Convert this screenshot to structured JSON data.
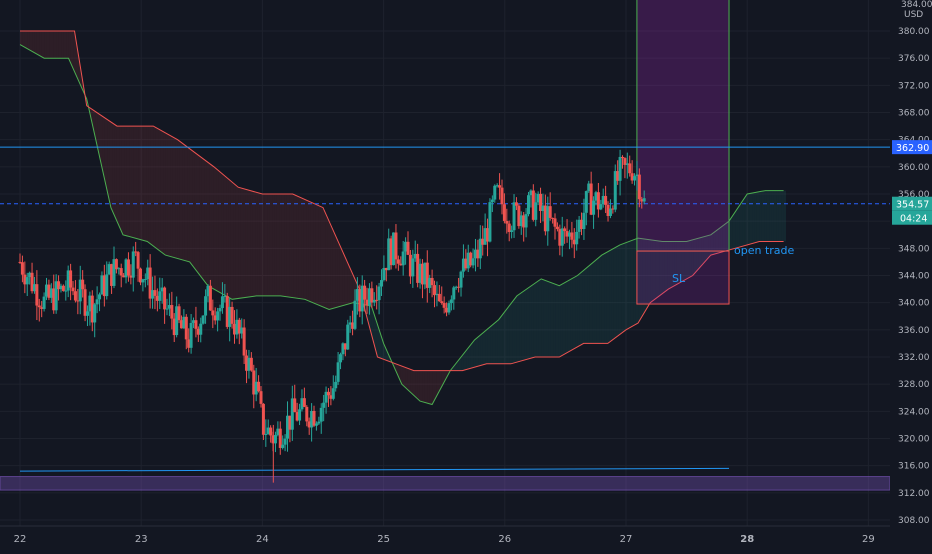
{
  "colors": {
    "background": "#131722",
    "grid": "#1e222d",
    "axis_text": "#b2b5be",
    "bull": "#26a69a",
    "bear": "#ef5350",
    "level_line": "#2962ff",
    "current_price_bg": "#26a69a",
    "level_price_bg": "#2962ff",
    "kumo_bull_fill": "#26a69a",
    "kumo_bear_fill": "#ef5350",
    "span_a": "#4caf50",
    "span_b": "#ef5350",
    "zone_purple": "#7e57c2",
    "annotation_text": "#2196f3"
  },
  "price_axis": {
    "currency": "USD",
    "top_label": "384.00",
    "ticks": [
      "380.00",
      "376.00",
      "372.00",
      "368.00",
      "364.00",
      "360.00",
      "356.00",
      "352.00",
      "348.00",
      "344.00",
      "340.00",
      "336.00",
      "332.00",
      "328.00",
      "324.00",
      "320.00",
      "316.00",
      "312.00",
      "308.00"
    ]
  },
  "time_axis": {
    "labels": [
      {
        "text": "22",
        "bold": false
      },
      {
        "text": "23",
        "bold": false
      },
      {
        "text": "24",
        "bold": false
      },
      {
        "text": "25",
        "bold": false
      },
      {
        "text": "26",
        "bold": false
      },
      {
        "text": "27",
        "bold": false
      },
      {
        "text": "28",
        "bold": true
      },
      {
        "text": "29",
        "bold": false
      }
    ]
  },
  "price_labels": {
    "level": "362.90",
    "current": "354.57",
    "countdown": "04:24"
  },
  "annotations": {
    "open_trade": "open trade",
    "stop_loss": "SL"
  },
  "chart_data": {
    "type": "candlestick",
    "x_axis": {
      "type": "date",
      "range": [
        "2021-01-22",
        "2021-01-29"
      ]
    },
    "ylim": [
      306,
      386
    ],
    "grid": true,
    "legend": "none",
    "horizontal_levels": [
      {
        "price": 362.9,
        "style": "solid"
      },
      {
        "price": 354.57,
        "style": "dashed"
      }
    ],
    "support_line": {
      "from": {
        "t": 0.0,
        "price": 315.2
      },
      "to": {
        "t": 5.85,
        "price": 315.6
      }
    },
    "purple_band": {
      "low": 312.4,
      "high": 314.4
    },
    "trade_zone": {
      "t_start": 5.09,
      "t_end": 5.85,
      "target_top": 386,
      "entry": 347.6,
      "stop": 339.8
    },
    "candles_seed": {
      "start": 346.0,
      "path": [
        [
          0.0,
          346.0
        ],
        [
          0.2,
          340.0
        ],
        [
          0.4,
          342.5
        ],
        [
          0.6,
          339.5
        ],
        [
          0.75,
          344.5
        ],
        [
          0.95,
          346.5
        ],
        [
          1.12,
          341.0
        ],
        [
          1.25,
          338.0
        ],
        [
          1.4,
          334.5
        ],
        [
          1.55,
          340.5
        ],
        [
          1.75,
          338.0
        ],
        [
          1.85,
          333.0
        ],
        [
          1.95,
          327.0
        ],
        [
          2.0,
          322.0
        ],
        [
          2.1,
          320.0
        ],
        [
          2.25,
          323.5
        ],
        [
          2.45,
          324.0
        ],
        [
          2.6,
          328.0
        ],
        [
          2.75,
          339.0
        ],
        [
          2.85,
          341.0
        ],
        [
          2.95,
          343.0
        ],
        [
          3.05,
          348.0
        ],
        [
          3.15,
          347.5
        ],
        [
          3.25,
          345.0
        ],
        [
          3.35,
          343.5
        ],
        [
          3.48,
          338.5
        ],
        [
          3.6,
          344.0
        ],
        [
          3.75,
          346.0
        ],
        [
          3.85,
          350.5
        ],
        [
          3.93,
          356.0
        ],
        [
          4.05,
          352.5
        ],
        [
          4.25,
          354.5
        ],
        [
          4.4,
          351.0
        ],
        [
          4.5,
          349.5
        ],
        [
          4.6,
          351.0
        ],
        [
          4.7,
          355.5
        ],
        [
          4.85,
          354.0
        ],
        [
          4.95,
          359.0
        ],
        [
          5.05,
          360.0
        ],
        [
          5.1,
          358.5
        ],
        [
          5.15,
          354.6
        ]
      ]
    },
    "ichimoku": {
      "span_a": [
        [
          0.0,
          378.0
        ],
        [
          0.2,
          376.0
        ],
        [
          0.4,
          376.0
        ],
        [
          0.55,
          370.0
        ],
        [
          0.75,
          354.0
        ],
        [
          0.85,
          350.0
        ],
        [
          1.05,
          349.0
        ],
        [
          1.2,
          347.0
        ],
        [
          1.4,
          346.0
        ],
        [
          1.55,
          342.5
        ],
        [
          1.75,
          340.5
        ],
        [
          1.95,
          341.0
        ],
        [
          2.15,
          341.0
        ],
        [
          2.35,
          340.5
        ],
        [
          2.55,
          339.0
        ],
        [
          2.75,
          340.0
        ],
        [
          2.9,
          339.5
        ],
        [
          3.0,
          334.0
        ],
        [
          3.15,
          328.0
        ],
        [
          3.3,
          325.5
        ],
        [
          3.4,
          325.0
        ],
        [
          3.55,
          330.0
        ],
        [
          3.75,
          334.5
        ],
        [
          3.95,
          337.5
        ],
        [
          4.1,
          341.0
        ],
        [
          4.3,
          343.5
        ],
        [
          4.45,
          342.5
        ],
        [
          4.6,
          344.0
        ],
        [
          4.8,
          347.0
        ],
        [
          4.95,
          348.5
        ],
        [
          5.1,
          349.5
        ],
        [
          5.3,
          349.0
        ],
        [
          5.5,
          349.0
        ],
        [
          5.7,
          350.0
        ],
        [
          5.85,
          352.0
        ],
        [
          6.0,
          356.0
        ],
        [
          6.15,
          356.5
        ],
        [
          6.3,
          356.5
        ]
      ],
      "span_b": [
        [
          0.0,
          380.0
        ],
        [
          0.35,
          380.0
        ],
        [
          0.45,
          380.0
        ],
        [
          0.55,
          369.0
        ],
        [
          0.8,
          366.0
        ],
        [
          1.1,
          366.0
        ],
        [
          1.3,
          364.0
        ],
        [
          1.6,
          360.0
        ],
        [
          1.8,
          357.0
        ],
        [
          2.0,
          356.0
        ],
        [
          2.25,
          356.0
        ],
        [
          2.5,
          354.0
        ],
        [
          2.65,
          348.0
        ],
        [
          2.8,
          342.0
        ],
        [
          2.95,
          332.0
        ],
        [
          3.1,
          331.0
        ],
        [
          3.25,
          330.0
        ],
        [
          3.45,
          330.0
        ],
        [
          3.65,
          330.0
        ],
        [
          3.85,
          331.0
        ],
        [
          4.05,
          331.0
        ],
        [
          4.25,
          332.0
        ],
        [
          4.45,
          332.0
        ],
        [
          4.65,
          334.0
        ],
        [
          4.85,
          334.0
        ],
        [
          5.0,
          336.0
        ],
        [
          5.1,
          337.0
        ],
        [
          5.2,
          340.0
        ],
        [
          5.35,
          342.0
        ],
        [
          5.55,
          344.0
        ],
        [
          5.7,
          347.0
        ],
        [
          5.9,
          348.0
        ],
        [
          6.1,
          349.0
        ],
        [
          6.3,
          349.0
        ]
      ]
    }
  }
}
